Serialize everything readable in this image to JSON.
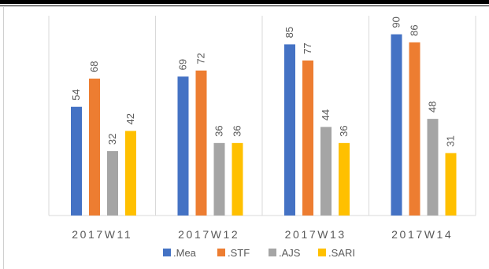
{
  "chart_data": {
    "type": "bar",
    "categories": [
      "2017W11",
      "2017W12",
      "2017W13",
      "2017W14"
    ],
    "series": [
      {
        "name": ".Mea",
        "values": [
          54,
          69,
          85,
          90
        ]
      },
      {
        "name": ".STF",
        "values": [
          68,
          72,
          77,
          86
        ]
      },
      {
        "name": ".AJS",
        "values": [
          32,
          36,
          44,
          48
        ]
      },
      {
        "name": ".SARI",
        "values": [
          42,
          36,
          36,
          31
        ]
      }
    ],
    "colors": [
      "#4472C4",
      "#ED7D31",
      "#A5A5A5",
      "#FFC000"
    ],
    "ylim": [
      0,
      100
    ],
    "grid": false,
    "legend_position": "bottom",
    "data_labels": true,
    "data_label_rotation": "vertical"
  }
}
